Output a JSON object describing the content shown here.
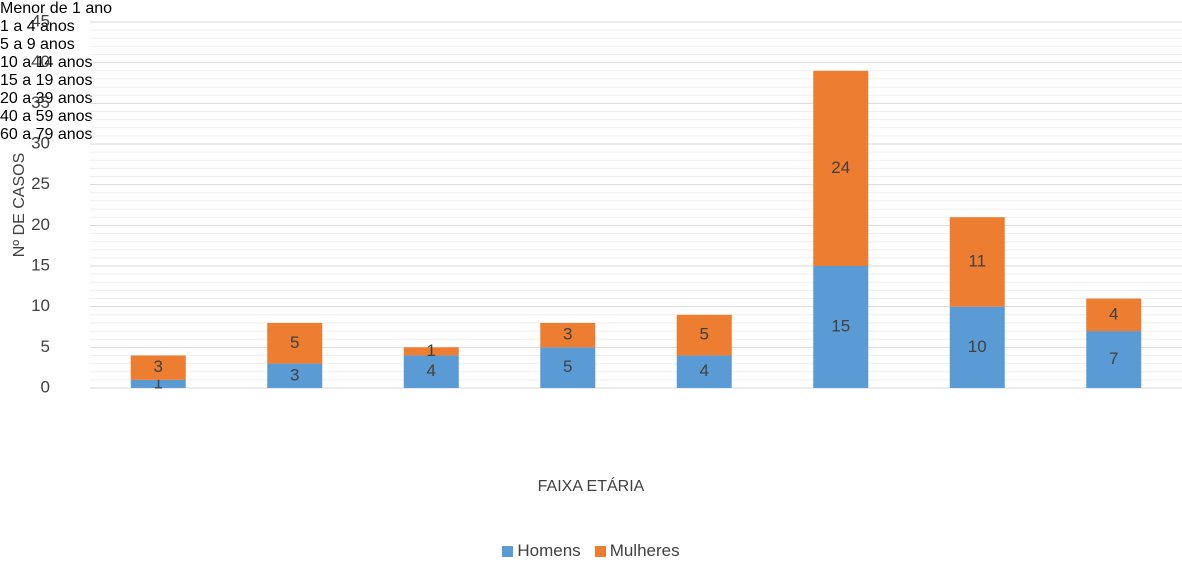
{
  "chart_data": {
    "type": "stacked_bar",
    "categories": [
      "Menor de 1 ano",
      "1 a 4 anos",
      "5 a 9 anos",
      "10 a 14 anos",
      "15 a 19 anos",
      "20 a 39 anos",
      "40 a 59 anos",
      "60 a 79 anos"
    ],
    "series": [
      {
        "name": "Homens",
        "color": "#5b9bd5",
        "values": [
          1,
          3,
          4,
          5,
          4,
          15,
          10,
          7
        ]
      },
      {
        "name": "Mulheres",
        "color": "#ed7d31",
        "values": [
          3,
          5,
          1,
          3,
          5,
          24,
          11,
          4
        ]
      }
    ],
    "xlabel": "FAIXA ETÁRIA",
    "ylabel": "Nº DE CASOS",
    "ylim": [
      0,
      45
    ],
    "yticks": [
      0,
      5,
      10,
      15,
      20,
      25,
      30,
      35,
      40,
      45
    ],
    "grid": true,
    "minor_grid": true,
    "legend": "bottom"
  }
}
